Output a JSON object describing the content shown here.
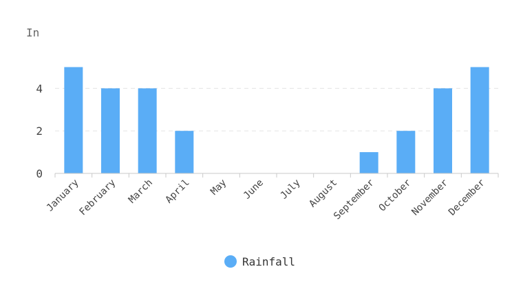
{
  "chart_data": {
    "type": "bar",
    "title": "",
    "ylabel": "In",
    "xlabel": "",
    "categories": [
      "January",
      "February",
      "March",
      "April",
      "May",
      "June",
      "July",
      "August",
      "September",
      "October",
      "November",
      "December"
    ],
    "series": [
      {
        "name": "Rainfall",
        "color": "#5aadf6",
        "values": [
          5,
          4,
          4,
          2,
          0,
          0,
          0,
          0,
          1,
          2,
          4,
          5
        ]
      }
    ],
    "ylim": [
      0,
      5
    ],
    "yticks": [
      0,
      2,
      4
    ],
    "grid": true,
    "legend_position": "bottom-center"
  }
}
